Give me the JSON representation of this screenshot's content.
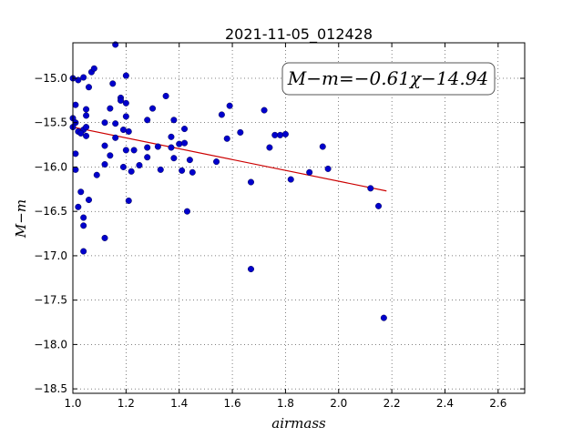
{
  "chart_data": {
    "type": "scatter",
    "title": "2021-11-05_012428",
    "xlabel": "airmass",
    "ylabel": "M−m",
    "xlim": [
      1.0,
      2.7
    ],
    "ylim": [
      -18.55,
      -14.6
    ],
    "x_ticks": [
      "1.0",
      "1.2",
      "1.4",
      "1.6",
      "1.8",
      "2.0",
      "2.2",
      "2.4",
      "2.6"
    ],
    "y_ticks": [
      "−15.0",
      "−15.5",
      "−16.0",
      "−16.5",
      "−17.0",
      "−17.5",
      "−18.0",
      "−18.5"
    ],
    "grid": true,
    "point_color": "#0000cc",
    "fit_color": "#cc0000",
    "annotation": "M−m=−0.61χ−14.94",
    "fit": {
      "slope": -0.61,
      "intercept": -14.94,
      "x_range": [
        1.0,
        2.18
      ]
    },
    "points": [
      [
        1.0,
        -15.0
      ],
      [
        1.02,
        -15.02
      ],
      [
        1.04,
        -14.99
      ],
      [
        1.01,
        -15.3
      ],
      [
        1.0,
        -15.45
      ],
      [
        1.01,
        -15.5
      ],
      [
        1.0,
        -15.55
      ],
      [
        1.02,
        -15.6
      ],
      [
        1.04,
        -15.58
      ],
      [
        1.05,
        -15.35
      ],
      [
        1.05,
        -15.42
      ],
      [
        1.05,
        -15.55
      ],
      [
        1.05,
        -15.65
      ],
      [
        1.03,
        -15.62
      ],
      [
        1.06,
        -15.1
      ],
      [
        1.07,
        -14.93
      ],
      [
        1.08,
        -14.89
      ],
      [
        1.01,
        -15.85
      ],
      [
        1.01,
        -16.03
      ],
      [
        1.03,
        -16.28
      ],
      [
        1.02,
        -16.45
      ],
      [
        1.04,
        -16.57
      ],
      [
        1.04,
        -16.66
      ],
      [
        1.06,
        -16.37
      ],
      [
        1.04,
        -16.95
      ],
      [
        1.09,
        -16.09
      ],
      [
        1.12,
        -15.5
      ],
      [
        1.12,
        -15.76
      ],
      [
        1.12,
        -15.97
      ],
      [
        1.12,
        -16.8
      ],
      [
        1.14,
        -15.34
      ],
      [
        1.15,
        -15.06
      ],
      [
        1.16,
        -14.62
      ],
      [
        1.18,
        -15.22
      ],
      [
        1.18,
        -15.25
      ],
      [
        1.2,
        -15.28
      ],
      [
        1.2,
        -15.43
      ],
      [
        1.2,
        -14.97
      ],
      [
        1.16,
        -15.51
      ],
      [
        1.16,
        -15.67
      ],
      [
        1.19,
        -15.58
      ],
      [
        1.21,
        -15.6
      ],
      [
        1.14,
        -15.87
      ],
      [
        1.2,
        -15.81
      ],
      [
        1.23,
        -15.81
      ],
      [
        1.19,
        -16.0
      ],
      [
        1.22,
        -16.05
      ],
      [
        1.25,
        -15.98
      ],
      [
        1.21,
        -16.38
      ],
      [
        1.28,
        -15.47
      ],
      [
        1.3,
        -15.34
      ],
      [
        1.28,
        -15.78
      ],
      [
        1.28,
        -15.89
      ],
      [
        1.32,
        -15.77
      ],
      [
        1.33,
        -16.03
      ],
      [
        1.35,
        -15.2
      ],
      [
        1.37,
        -15.66
      ],
      [
        1.38,
        -15.47
      ],
      [
        1.37,
        -15.78
      ],
      [
        1.38,
        -15.9
      ],
      [
        1.4,
        -15.74
      ],
      [
        1.42,
        -15.57
      ],
      [
        1.42,
        -15.73
      ],
      [
        1.41,
        -16.04
      ],
      [
        1.44,
        -15.92
      ],
      [
        1.45,
        -16.06
      ],
      [
        1.43,
        -16.5
      ],
      [
        1.54,
        -15.94
      ],
      [
        1.56,
        -15.41
      ],
      [
        1.59,
        -15.31
      ],
      [
        1.58,
        -15.68
      ],
      [
        1.63,
        -15.61
      ],
      [
        1.67,
        -16.17
      ],
      [
        1.67,
        -17.15
      ],
      [
        1.72,
        -15.36
      ],
      [
        1.74,
        -15.78
      ],
      [
        1.76,
        -15.64
      ],
      [
        1.78,
        -15.64
      ],
      [
        1.8,
        -15.63
      ],
      [
        1.82,
        -16.14
      ],
      [
        1.89,
        -16.06
      ],
      [
        1.94,
        -15.77
      ],
      [
        1.96,
        -16.02
      ],
      [
        2.12,
        -16.24
      ],
      [
        2.15,
        -16.44
      ],
      [
        2.17,
        -17.7
      ]
    ]
  }
}
